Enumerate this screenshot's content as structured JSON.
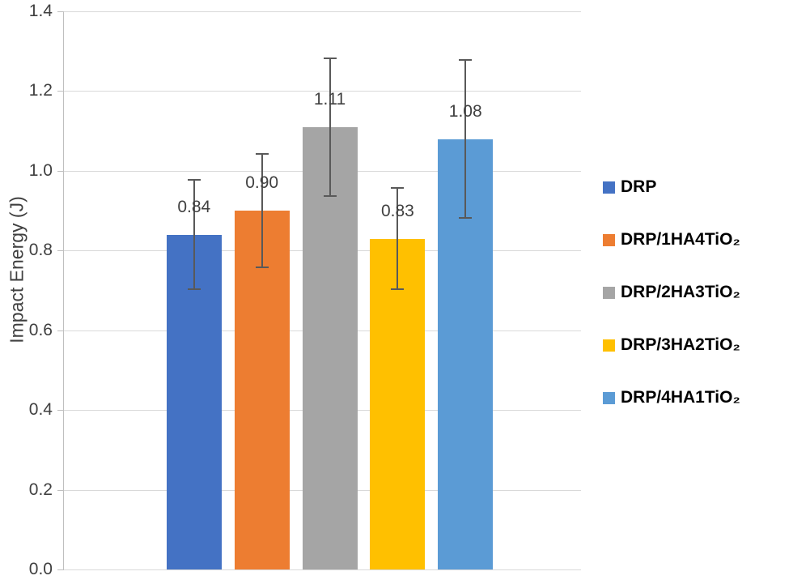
{
  "chart_data": {
    "type": "bar",
    "title": "",
    "xlabel": "",
    "ylabel": "Impact Energy (J)",
    "ylim": [
      0,
      1.4
    ],
    "yticks": [
      "0.0",
      "0.2",
      "0.4",
      "0.6",
      "0.8",
      "1.0",
      "1.2",
      "1.4"
    ],
    "grid": true,
    "legend_position": "right",
    "categories": [
      "DRP",
      "DRP/1HA4TiO₂",
      "DRP/2HA3TiO₂",
      "DRP/3HA2TiO₂",
      "DRP/4HA1TiO₂"
    ],
    "values": [
      0.84,
      0.9,
      1.11,
      0.83,
      1.08
    ],
    "value_labels": [
      "0.84",
      "0.90",
      "1.11",
      "0.83",
      "1.08"
    ],
    "errors": [
      0.14,
      0.145,
      0.175,
      0.13,
      0.2
    ],
    "colors": [
      "#4472c4",
      "#ed7d31",
      "#a5a5a5",
      "#ffc000",
      "#5b9bd5"
    ],
    "error_bar_color": "#595959"
  }
}
